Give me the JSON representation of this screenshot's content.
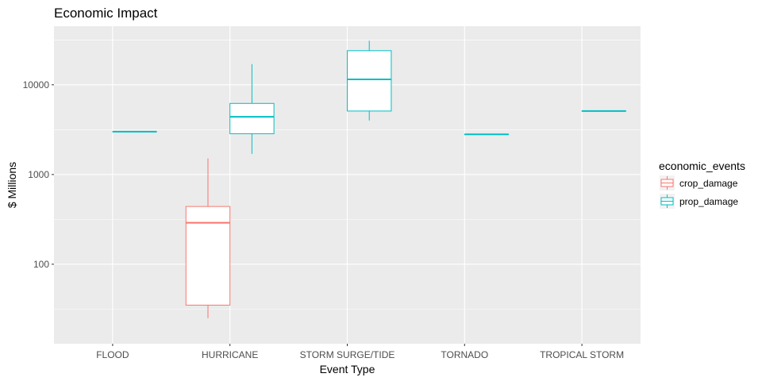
{
  "chart_data": {
    "type": "box",
    "title": "Economic Impact",
    "xlabel": "Event Type",
    "ylabel": "$ Millions",
    "y_scale": "log10",
    "ylim": [
      13,
      45000
    ],
    "y_ticks": [
      100,
      1000,
      10000
    ],
    "y_tick_labels": [
      "100",
      "1000",
      "10000"
    ],
    "grid": true,
    "categories": [
      "FLOOD",
      "HURRICANE",
      "STORM SURGE/TIDE",
      "TORNADO",
      "TROPICAL STORM"
    ],
    "legend": {
      "title": "economic_events",
      "position": "right",
      "entries": [
        {
          "name": "crop_damage",
          "color": "#F8766D"
        },
        {
          "name": "prop_damage",
          "color": "#00BFC4"
        }
      ]
    },
    "series": [
      {
        "name": "crop_damage",
        "color": "#F8766D",
        "boxes": [
          {
            "category": "HURRICANE",
            "min": 25,
            "q1": 35,
            "median": 290,
            "q3": 440,
            "max": 1510
          }
        ]
      },
      {
        "name": "prop_damage",
        "color": "#00BFC4",
        "boxes": [
          {
            "category": "FLOOD",
            "min": 3000,
            "q1": 3000,
            "median": 3000,
            "q3": 3000,
            "max": 3000
          },
          {
            "category": "HURRICANE",
            "min": 1700,
            "q1": 2850,
            "median": 4400,
            "q3": 6200,
            "max": 17000
          },
          {
            "category": "STORM SURGE/TIDE",
            "min": 4000,
            "q1": 5100,
            "median": 11500,
            "q3": 24000,
            "max": 31000
          },
          {
            "category": "TORNADO",
            "min": 2800,
            "q1": 2800,
            "median": 2800,
            "q3": 2800,
            "max": 2800
          },
          {
            "category": "TROPICAL STORM",
            "min": 5100,
            "q1": 5100,
            "median": 5100,
            "q3": 5100,
            "max": 5100
          }
        ]
      }
    ]
  }
}
